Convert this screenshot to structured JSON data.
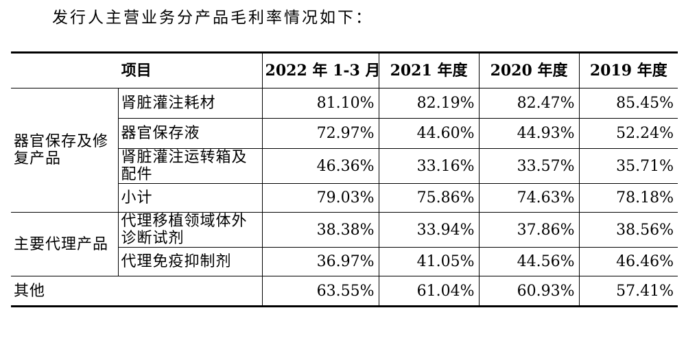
{
  "intro_text": "发行人主营业务分产品毛利率情况如下：",
  "table": {
    "header": {
      "item": "项目",
      "periods": [
        "2022 年 1-3 月",
        "2021 年度",
        "2020 年度",
        "2019 年度"
      ]
    },
    "groups": [
      {
        "category": "器官保存及修复产品",
        "rows": [
          {
            "name": "肾脏灌注耗材",
            "values": [
              "81.10%",
              "82.19%",
              "82.47%",
              "85.45%"
            ]
          },
          {
            "name": "器官保存液",
            "values": [
              "72.97%",
              "44.60%",
              "44.93%",
              "52.24%"
            ]
          },
          {
            "name": "肾脏灌注运转箱及配件",
            "values": [
              "46.36%",
              "33.16%",
              "33.57%",
              "35.71%"
            ]
          },
          {
            "name": "小计",
            "values": [
              "79.03%",
              "75.86%",
              "74.63%",
              "78.18%"
            ]
          }
        ]
      },
      {
        "category": "主要代理产品",
        "rows": [
          {
            "name": "代理移植领域体外诊断试剂",
            "values": [
              "38.38%",
              "33.94%",
              "37.86%",
              "38.56%"
            ]
          },
          {
            "name": "代理免疫抑制剂",
            "values": [
              "36.97%",
              "41.05%",
              "44.56%",
              "46.46%"
            ]
          }
        ]
      }
    ],
    "other": {
      "name": "其他",
      "values": [
        "63.55%",
        "61.04%",
        "60.93%",
        "57.41%"
      ]
    }
  }
}
